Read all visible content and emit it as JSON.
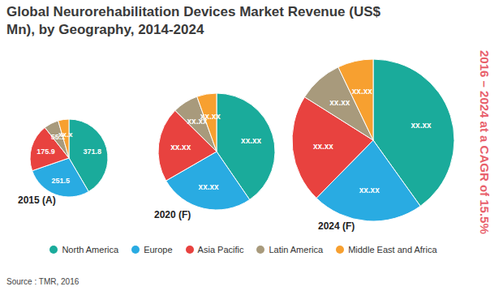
{
  "chart_data": {
    "type": "pie",
    "title": "Global Neurorehabilitation Devices Market Revenue (US$ Mn), by Geography, 2014-2024",
    "annotation": "2016 – 2024 at a CAGR of 15.5%",
    "source": "Source : TMR, 2016",
    "categories": [
      "North America",
      "Europe",
      "Asia Pacific",
      "Latin America",
      "Middle East and Africa"
    ],
    "colors": [
      "#1aab9b",
      "#29abe2",
      "#e8423f",
      "#a89a7c",
      "#f7a030"
    ],
    "data_labels": true,
    "legend": "bottom",
    "pies": [
      {
        "label": "2015 (A)",
        "values": [
          371.8,
          251.5,
          175.9,
          55.1,
          40
        ],
        "value_labels": [
          "371.8",
          "251.5",
          "175.9",
          "55.1",
          "xx.x"
        ]
      },
      {
        "label": "2020 (F)",
        "values": [
          740,
          480,
          380,
          130,
          100
        ],
        "value_labels": [
          "xx.xx",
          "xx.xx",
          "xx.xx",
          "xx.xx",
          "xx.xx"
        ]
      },
      {
        "label": "2024 (F)",
        "values": [
          1300,
          720,
          700,
          290,
          230
        ],
        "value_labels": [
          "xx.xx",
          "xx.xx",
          "xx.xx",
          "xx.xx",
          "xx.xx"
        ]
      }
    ]
  }
}
